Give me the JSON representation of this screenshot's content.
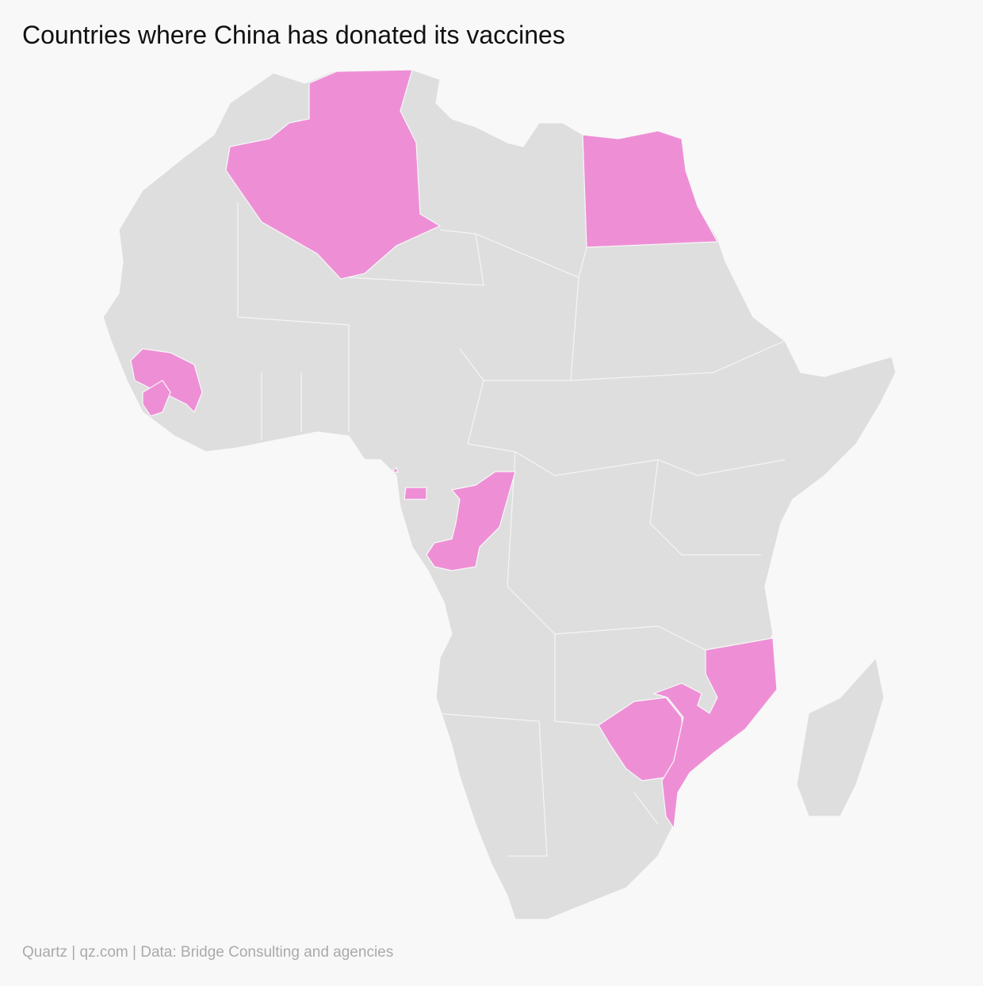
{
  "header": {
    "title": "Countries where China has donated its vaccines"
  },
  "footer": {
    "source": "Quartz | qz.com | Data: Bridge Consulting and agencies"
  }
}
